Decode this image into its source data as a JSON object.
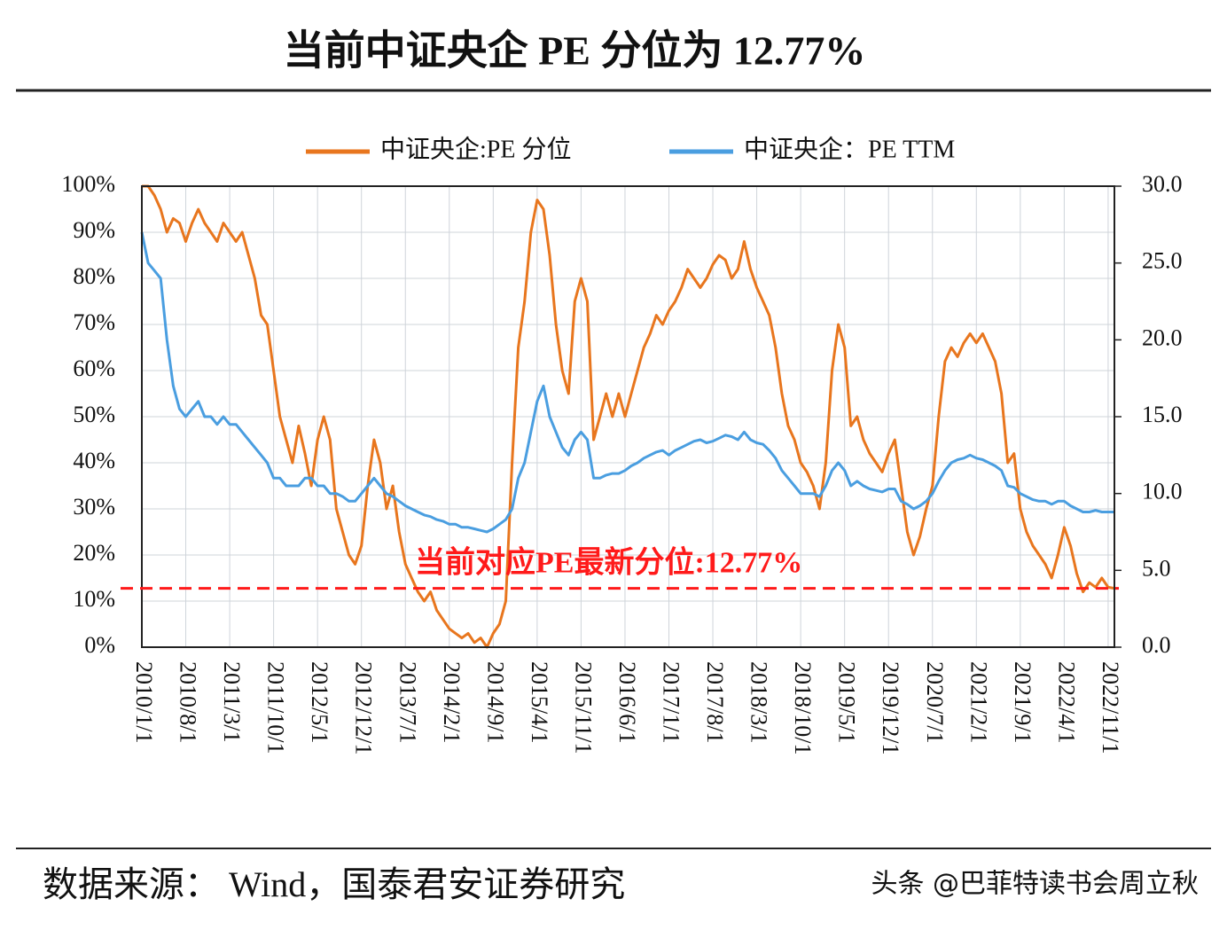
{
  "chart_data": {
    "type": "line",
    "title": "当前中证央企 PE 分位为 12.77%",
    "source": "数据来源： Wind，国泰君安证券研究",
    "watermark": "头条 @巴菲特读书会周立秋",
    "categories": [
      "2010/1/1",
      null,
      null,
      null,
      null,
      null,
      null,
      "2010/8/1",
      null,
      null,
      null,
      null,
      null,
      null,
      "2011/3/1",
      null,
      null,
      null,
      null,
      null,
      null,
      "2011/10/1",
      null,
      null,
      null,
      null,
      null,
      null,
      "2012/5/1",
      null,
      null,
      null,
      null,
      null,
      null,
      "2012/12/1",
      null,
      null,
      null,
      null,
      null,
      null,
      "2013/7/1",
      null,
      null,
      null,
      null,
      null,
      null,
      "2014/2/1",
      null,
      null,
      null,
      null,
      null,
      null,
      "2014/9/1",
      null,
      null,
      null,
      null,
      null,
      null,
      "2015/4/1",
      null,
      null,
      null,
      null,
      null,
      null,
      "2015/11/1",
      null,
      null,
      null,
      null,
      null,
      null,
      "2016/6/1",
      null,
      null,
      null,
      null,
      null,
      null,
      "2017/1/1",
      null,
      null,
      null,
      null,
      null,
      null,
      "2017/8/1",
      null,
      null,
      null,
      null,
      null,
      null,
      "2018/3/1",
      null,
      null,
      null,
      null,
      null,
      null,
      "2018/10/1",
      null,
      null,
      null,
      null,
      null,
      null,
      "2019/5/1",
      null,
      null,
      null,
      null,
      null,
      null,
      "2019/12/1",
      null,
      null,
      null,
      null,
      null,
      null,
      "2020/7/1",
      null,
      null,
      null,
      null,
      null,
      null,
      "2021/2/1",
      null,
      null,
      null,
      null,
      null,
      null,
      "2021/9/1",
      null,
      null,
      null,
      null,
      null,
      null,
      "2022/4/1",
      null,
      null,
      null,
      null,
      null,
      null,
      "2022/11/1",
      null
    ],
    "series": [
      {
        "name": "中证央企:PE 分位",
        "color": "#e8761e",
        "axis": "y",
        "values": [
          100,
          100,
          98,
          95,
          90,
          93,
          92,
          88,
          92,
          95,
          92,
          90,
          88,
          92,
          90,
          88,
          90,
          85,
          80,
          72,
          70,
          60,
          50,
          45,
          40,
          48,
          42,
          35,
          45,
          50,
          45,
          30,
          25,
          20,
          18,
          22,
          35,
          45,
          40,
          30,
          35,
          25,
          18,
          15,
          12,
          10,
          12,
          8,
          6,
          4,
          3,
          2,
          3,
          1,
          2,
          0,
          3,
          5,
          10,
          40,
          65,
          75,
          90,
          97,
          95,
          85,
          70,
          60,
          55,
          75,
          80,
          75,
          45,
          50,
          55,
          50,
          55,
          50,
          55,
          60,
          65,
          68,
          72,
          70,
          73,
          75,
          78,
          82,
          80,
          78,
          80,
          83,
          85,
          84,
          80,
          82,
          88,
          82,
          78,
          75,
          72,
          65,
          55,
          48,
          45,
          40,
          38,
          35,
          30,
          40,
          60,
          70,
          65,
          48,
          50,
          45,
          42,
          40,
          38,
          42,
          45,
          35,
          25,
          20,
          24,
          30,
          35,
          50,
          62,
          65,
          63,
          66,
          68,
          66,
          68,
          65,
          62,
          55,
          40,
          42,
          30,
          25,
          22,
          20,
          18,
          15,
          20,
          26,
          22,
          16,
          12,
          14,
          13,
          15,
          13,
          12.77
        ]
      },
      {
        "name": "中证央企：PE TTM",
        "color": "#4a9ee0",
        "axis": "y2",
        "values": [
          27,
          25,
          24.5,
          24,
          20,
          17,
          15.5,
          15,
          15.5,
          16,
          15,
          15,
          14.5,
          15,
          14.5,
          14.5,
          14,
          13.5,
          13,
          12.5,
          12,
          11,
          11,
          10.5,
          10.5,
          10.5,
          11,
          11,
          10.5,
          10.5,
          10,
          10,
          9.8,
          9.5,
          9.5,
          10,
          10.5,
          11,
          10.5,
          10,
          9.8,
          9.5,
          9.2,
          9,
          8.8,
          8.6,
          8.5,
          8.3,
          8.2,
          8,
          8,
          7.8,
          7.8,
          7.7,
          7.6,
          7.5,
          7.7,
          8,
          8.3,
          9,
          11,
          12,
          14,
          16,
          17,
          15,
          14,
          13,
          12.5,
          13.5,
          14,
          13.5,
          11,
          11,
          11.2,
          11.3,
          11.3,
          11.5,
          11.8,
          12,
          12.3,
          12.5,
          12.7,
          12.8,
          12.5,
          12.8,
          13,
          13.2,
          13.4,
          13.5,
          13.3,
          13.4,
          13.6,
          13.8,
          13.7,
          13.5,
          14,
          13.5,
          13.3,
          13.2,
          12.8,
          12.3,
          11.5,
          11,
          10.5,
          10,
          10,
          10,
          9.8,
          10.5,
          11.5,
          12,
          11.5,
          10.5,
          10.8,
          10.5,
          10.3,
          10.2,
          10.1,
          10.3,
          10.3,
          9.5,
          9.3,
          9,
          9.2,
          9.5,
          10,
          10.8,
          11.5,
          12,
          12.2,
          12.3,
          12.5,
          12.3,
          12.2,
          12,
          11.8,
          11.5,
          10.5,
          10.4,
          10,
          9.8,
          9.6,
          9.5,
          9.5,
          9.3,
          9.5,
          9.5,
          9.2,
          9,
          8.8,
          8.8,
          8.9,
          8.8,
          8.8,
          8.8
        ]
      }
    ],
    "ylim": [
      0,
      100
    ],
    "yticks": [
      {
        "value": 0,
        "label": "0%"
      },
      {
        "value": 10,
        "label": "10%"
      },
      {
        "value": 20,
        "label": "20%"
      },
      {
        "value": 30,
        "label": "30%"
      },
      {
        "value": 40,
        "label": "40%"
      },
      {
        "value": 50,
        "label": "50%"
      },
      {
        "value": 60,
        "label": "60%"
      },
      {
        "value": 70,
        "label": "70%"
      },
      {
        "value": 80,
        "label": "80%"
      },
      {
        "value": 90,
        "label": "90%"
      },
      {
        "value": 100,
        "label": "100%"
      }
    ],
    "y2lim": [
      0,
      30
    ],
    "y2ticks": [
      {
        "value": 0,
        "label": "0.0"
      },
      {
        "value": 5,
        "label": "5.0"
      },
      {
        "value": 10,
        "label": "10.0"
      },
      {
        "value": 15,
        "label": "15.0"
      },
      {
        "value": 20,
        "label": "20.0"
      },
      {
        "value": 25,
        "label": "25.0"
      },
      {
        "value": 30,
        "label": "30.0"
      }
    ],
    "reference_line": {
      "value": 12.77,
      "label": "当前对应PE最新分位:12.77%",
      "color": "#ff1a1a"
    },
    "grid": true,
    "legend": "top"
  }
}
